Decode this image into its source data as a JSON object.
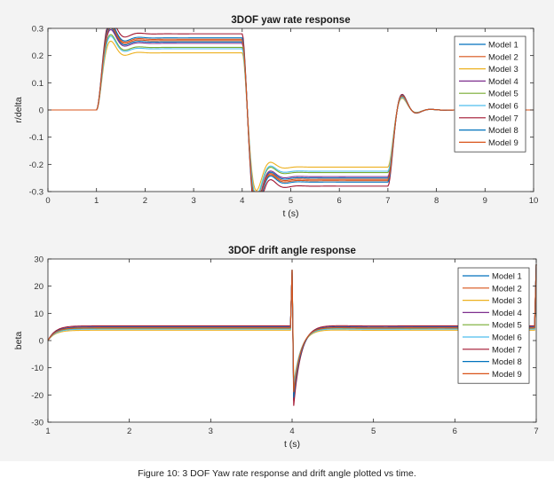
{
  "caption": "Figure 10: 3 DOF Yaw rate response and drift angle plotted vs time.",
  "colors": [
    "#0072BD",
    "#D95319",
    "#EDB120",
    "#7E2F8E",
    "#77AC30",
    "#4DBEEE",
    "#A2142F",
    "#0072BD",
    "#D95319"
  ],
  "chart_data": [
    {
      "type": "line",
      "title": "3DOF yaw rate response",
      "xlabel": "t (s)",
      "ylabel": "r/delta",
      "xlim": [
        0,
        10
      ],
      "ylim": [
        -0.3,
        0.3
      ],
      "xticks": [
        "0",
        "1",
        "2",
        "3",
        "4",
        "5",
        "6",
        "7",
        "8",
        "9",
        "10"
      ],
      "yticks": [
        "0.3",
        "0.2",
        "0.1",
        "0",
        "-0.1",
        "-0.2",
        "-0.3"
      ],
      "grid": false,
      "legend_position": "top-right",
      "series": [
        {
          "name": "Model 1",
          "steady_high": 0.25,
          "steady_low": -0.25
        },
        {
          "name": "Model 2",
          "steady_high": 0.26,
          "steady_low": -0.26
        },
        {
          "name": "Model 3",
          "steady_high": 0.21,
          "steady_low": -0.21
        },
        {
          "name": "Model 4",
          "steady_high": 0.245,
          "steady_low": -0.245
        },
        {
          "name": "Model 5",
          "steady_high": 0.23,
          "steady_low": -0.23
        },
        {
          "name": "Model 6",
          "steady_high": 0.225,
          "steady_low": -0.225
        },
        {
          "name": "Model 7",
          "steady_high": 0.28,
          "steady_low": -0.28
        },
        {
          "name": "Model 8",
          "steady_high": 0.265,
          "steady_low": -0.265
        },
        {
          "name": "Model 9",
          "steady_high": 0.255,
          "steady_low": -0.255
        }
      ]
    },
    {
      "type": "line",
      "title": "3DOF drift angle response",
      "xlabel": "t (s)",
      "ylabel": "beta",
      "xlim": [
        1,
        7
      ],
      "ylim": [
        -30,
        30
      ],
      "xticks": [
        "1",
        "2",
        "3",
        "4",
        "5",
        "6",
        "7"
      ],
      "yticks": [
        "30",
        "20",
        "10",
        "0",
        "-10",
        "-20",
        "-30"
      ],
      "grid": false,
      "legend_position": "top-right",
      "series": [
        {
          "name": "Model 1",
          "steady": 4.8,
          "spike_down": -22
        },
        {
          "name": "Model 2",
          "steady": 4.6,
          "spike_down": -20
        },
        {
          "name": "Model 3",
          "steady": 3.8,
          "spike_down": -16
        },
        {
          "name": "Model 4",
          "steady": 5.0,
          "spike_down": -21
        },
        {
          "name": "Model 5",
          "steady": 4.3,
          "spike_down": -18
        },
        {
          "name": "Model 6",
          "steady": 4.2,
          "spike_down": -17
        },
        {
          "name": "Model 7",
          "steady": 5.4,
          "spike_down": -24
        },
        {
          "name": "Model 8",
          "steady": 4.9,
          "spike_down": -21
        },
        {
          "name": "Model 9",
          "steady": 4.7,
          "spike_down": -19
        }
      ]
    }
  ]
}
